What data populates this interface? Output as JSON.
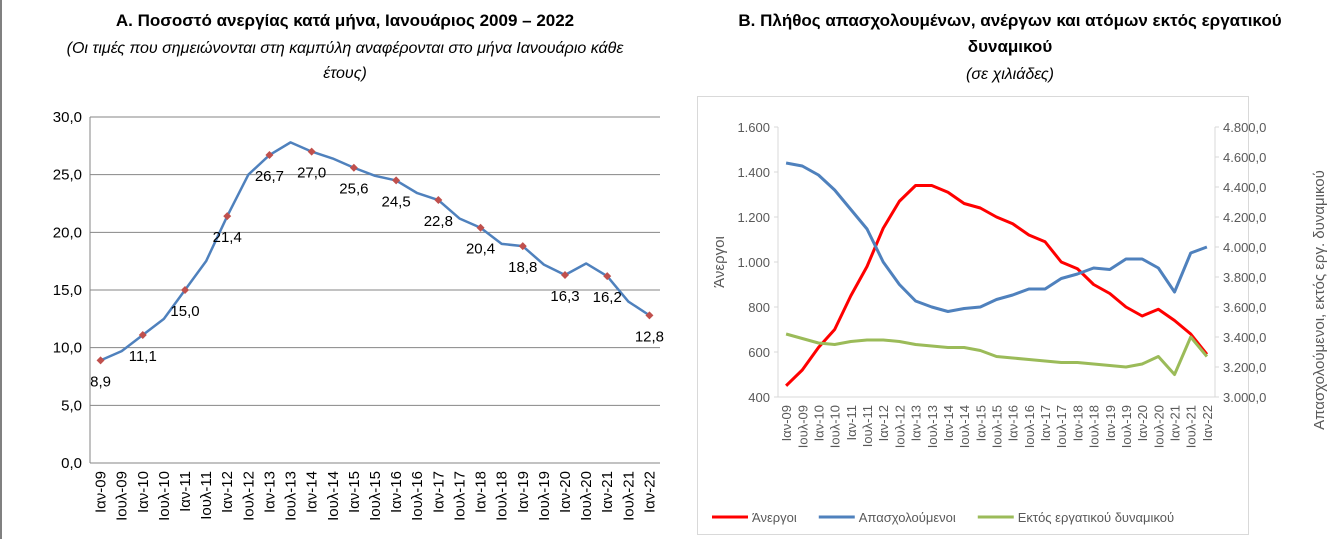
{
  "chart_data": [
    {
      "type": "line",
      "title": "Α. Ποσοστό ανεργίας κατά μήνα, Ιανουάριος 2009 – 2022",
      "subtitle": "(Οι τιμές που σημειώνονται στη καμπύλη αναφέρονται στο μήνα Ιανουάριο κάθε έτους)",
      "categories": [
        "Ιαν-09",
        "Ιουλ-09",
        "Ιαν-10",
        "Ιουλ-10",
        "Ιαν-11",
        "Ιουλ-11",
        "Ιαν-12",
        "Ιουλ-12",
        "Ιαν-13",
        "Ιουλ-13",
        "Ιαν-14",
        "Ιουλ-14",
        "Ιαν-15",
        "Ιουλ-15",
        "Ιαν-16",
        "Ιουλ-16",
        "Ιαν-17",
        "Ιουλ-17",
        "Ιαν-18",
        "Ιουλ-18",
        "Ιαν-19",
        "Ιουλ-19",
        "Ιαν-20",
        "Ιουλ-20",
        "Ιαν-21",
        "Ιουλ-21",
        "Ιαν-22"
      ],
      "values": [
        8.9,
        9.7,
        11.1,
        12.5,
        15.0,
        17.5,
        21.4,
        25.0,
        26.7,
        27.8,
        27.0,
        26.4,
        25.6,
        24.9,
        24.5,
        23.4,
        22.8,
        21.2,
        20.4,
        19.0,
        18.8,
        17.2,
        16.3,
        17.3,
        16.2,
        14.0,
        12.8
      ],
      "value_labels": [
        "8,9",
        null,
        "11,1",
        null,
        "15,0",
        null,
        "21,4",
        null,
        "26,7",
        null,
        "27,0",
        null,
        "25,6",
        null,
        "24,5",
        null,
        "22,8",
        null,
        "20,4",
        null,
        "18,8",
        null,
        "16,3",
        null,
        "16,2",
        null,
        "12,8"
      ],
      "color": "#4f81bd",
      "marker_color": "#c0504d",
      "ylim": [
        0,
        30
      ],
      "yticks": [
        {
          "value": 0,
          "label": "0,0"
        },
        {
          "value": 5,
          "label": "5,0"
        },
        {
          "value": 10,
          "label": "10,0"
        },
        {
          "value": 15,
          "label": "15,0"
        },
        {
          "value": 20,
          "label": "20,0"
        },
        {
          "value": 25,
          "label": "25,0"
        },
        {
          "value": 30,
          "label": "30,0"
        }
      ],
      "grid": true
    },
    {
      "type": "line",
      "title": "Β. Πλήθος απασχολουμένων, ανέργων και ατόμων εκτός εργατικού δυναμικού",
      "subtitle": "(σε χιλιάδες)",
      "y_label": "Άνεργοι",
      "y2_label": "Απασχολούμενοι, εκτός εργ. δυναμικού",
      "categories": [
        "Ιαν-09",
        "Ιουλ-09",
        "Ιαν-10",
        "Ιουλ-10",
        "Ιαν-11",
        "Ιουλ-11",
        "Ιαν-12",
        "Ιουλ-12",
        "Ιαν-13",
        "Ιουλ-13",
        "Ιαν-14",
        "Ιουλ-14",
        "Ιαν-15",
        "Ιουλ-15",
        "Ιαν-16",
        "Ιουλ-16",
        "Ιαν-17",
        "Ιουλ-17",
        "Ιαν-18",
        "Ιουλ-18",
        "Ιαν-19",
        "Ιουλ-19",
        "Ιαν-20",
        "Ιουλ-20",
        "Ιαν-21",
        "Ιουλ-21",
        "Ιαν-22"
      ],
      "series": [
        {
          "name": "Άνεργοι",
          "color": "#ff0000",
          "values": [
            450,
            520,
            620,
            700,
            850,
            980,
            1150,
            1270,
            1340,
            1340,
            1310,
            1260,
            1240,
            1200,
            1170,
            1120,
            1090,
            1000,
            970,
            900,
            860,
            800,
            760,
            790,
            740,
            680,
            590
          ]
        },
        {
          "name": "Απασχολούμενοι",
          "color": "#4f81bd",
          "axis": "y2",
          "values": [
            4560,
            4540,
            4480,
            4380,
            4250,
            4120,
            3900,
            3750,
            3640,
            3600,
            3570,
            3590,
            3600,
            3650,
            3680,
            3720,
            3720,
            3790,
            3820,
            3860,
            3850,
            3920,
            3920,
            3860,
            3700,
            3960,
            4000
          ]
        },
        {
          "name": "Εκτός εργατικού δυναμικού",
          "color": "#9bbb59",
          "axis": "y2",
          "values": [
            3420,
            3390,
            3360,
            3350,
            3370,
            3380,
            3380,
            3370,
            3350,
            3340,
            3330,
            3330,
            3310,
            3270,
            3260,
            3250,
            3240,
            3230,
            3230,
            3220,
            3210,
            3200,
            3220,
            3270,
            3150,
            3400,
            3270
          ]
        }
      ],
      "ylim": [
        400,
        1600
      ],
      "yticks": [
        400,
        600,
        800,
        {
          "value": 1000,
          "label": "1.000"
        },
        {
          "value": 1200,
          "label": "1.200"
        },
        {
          "value": 1400,
          "label": "1.400"
        },
        {
          "value": 1600,
          "label": "1.600"
        }
      ],
      "y2lim": [
        3000,
        4800
      ],
      "y2ticks": [
        {
          "value": 3000,
          "label": "3.000,0"
        },
        {
          "value": 3200,
          "label": "3.200,0"
        },
        {
          "value": 3400,
          "label": "3.400,0"
        },
        {
          "value": 3600,
          "label": "3.600,0"
        },
        {
          "value": 3800,
          "label": "3.800,0"
        },
        {
          "value": 4000,
          "label": "4.000,0"
        },
        {
          "value": 4200,
          "label": "4.200,0"
        },
        {
          "value": 4400,
          "label": "4.400,0"
        },
        {
          "value": 4600,
          "label": "4.600,0"
        },
        {
          "value": 4800,
          "label": "4.800,0"
        }
      ],
      "grid": false,
      "legend": "bottom"
    }
  ]
}
